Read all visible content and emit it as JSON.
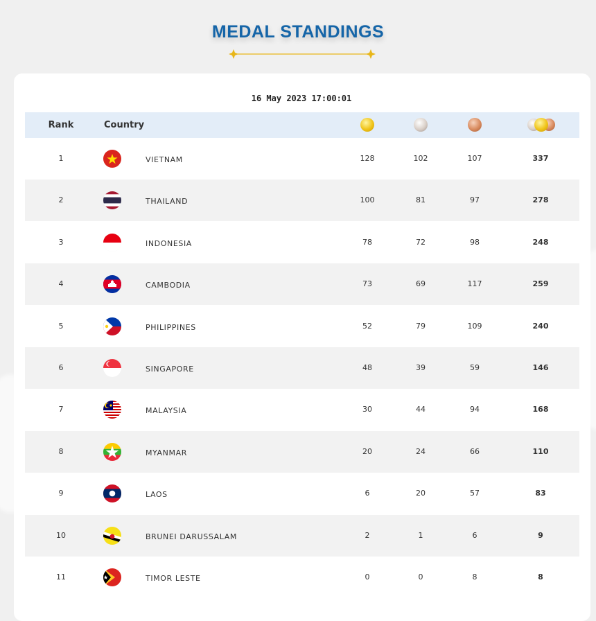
{
  "title": "MEDAL STANDINGS",
  "timestamp": "16 May 2023  17:00:01",
  "colors": {
    "title": "#1565a8",
    "accent": "#e8b619",
    "header_bg": "#e3edf8",
    "stripe": "#f2f2f2"
  },
  "header": {
    "rank": "Rank",
    "country": "Country",
    "gold_icon": "gold-medal-icon",
    "silver_icon": "silver-medal-icon",
    "bronze_icon": "bronze-medal-icon",
    "total_icon": "total-medals-icon"
  },
  "rows": [
    {
      "rank": "1",
      "country": "VIETNAM",
      "gold": "128",
      "silver": "102",
      "bronze": "107",
      "total": "337",
      "flag": "vietnam-flag"
    },
    {
      "rank": "2",
      "country": "THAILAND",
      "gold": "100",
      "silver": "81",
      "bronze": "97",
      "total": "278",
      "flag": "thailand-flag"
    },
    {
      "rank": "3",
      "country": "INDONESIA",
      "gold": "78",
      "silver": "72",
      "bronze": "98",
      "total": "248",
      "flag": "indonesia-flag"
    },
    {
      "rank": "4",
      "country": "CAMBODIA",
      "gold": "73",
      "silver": "69",
      "bronze": "117",
      "total": "259",
      "flag": "cambodia-flag"
    },
    {
      "rank": "5",
      "country": "PHILIPPINES",
      "gold": "52",
      "silver": "79",
      "bronze": "109",
      "total": "240",
      "flag": "philippines-flag"
    },
    {
      "rank": "6",
      "country": "SINGAPORE",
      "gold": "48",
      "silver": "39",
      "bronze": "59",
      "total": "146",
      "flag": "singapore-flag"
    },
    {
      "rank": "7",
      "country": "MALAYSIA",
      "gold": "30",
      "silver": "44",
      "bronze": "94",
      "total": "168",
      "flag": "malaysia-flag"
    },
    {
      "rank": "8",
      "country": "MYANMAR",
      "gold": "20",
      "silver": "24",
      "bronze": "66",
      "total": "110",
      "flag": "myanmar-flag"
    },
    {
      "rank": "9",
      "country": "LAOS",
      "gold": "6",
      "silver": "20",
      "bronze": "57",
      "total": "83",
      "flag": "laos-flag"
    },
    {
      "rank": "10",
      "country": "BRUNEI DARUSSALAM",
      "gold": "2",
      "silver": "1",
      "bronze": "6",
      "total": "9",
      "flag": "brunei-flag"
    },
    {
      "rank": "11",
      "country": "TIMOR LESTE",
      "gold": "0",
      "silver": "0",
      "bronze": "8",
      "total": "8",
      "flag": "timor-leste-flag"
    }
  ]
}
